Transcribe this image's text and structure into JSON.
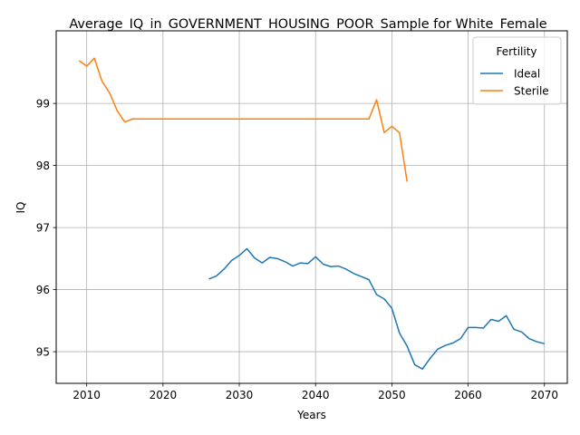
{
  "chart_data": {
    "type": "line",
    "title": "Average_IQ_in_GOVERNMENT_HOUSING_POOR_Sample for White_Female",
    "xlabel": "Years",
    "ylabel": "IQ",
    "xlim": [
      2006,
      2073
    ],
    "ylim": [
      94.49,
      100.17
    ],
    "xticks": [
      2010,
      2020,
      2030,
      2040,
      2050,
      2060,
      2070
    ],
    "yticks": [
      95,
      96,
      97,
      98,
      99
    ],
    "grid": true,
    "legend": {
      "title": "Fertility",
      "placement": "top-right"
    },
    "series": [
      {
        "name": "Ideal",
        "color": "#1f77b4",
        "x": [
          2026,
          2027,
          2028,
          2029,
          2030,
          2031,
          2032,
          2033,
          2034,
          2035,
          2036,
          2037,
          2038,
          2039,
          2040,
          2041,
          2042,
          2043,
          2044,
          2045,
          2046,
          2047,
          2048,
          2049,
          2050,
          2051,
          2052,
          2053,
          2054,
          2055,
          2056,
          2057,
          2058,
          2059,
          2060,
          2061,
          2062,
          2063,
          2064,
          2065,
          2066,
          2067,
          2068,
          2069,
          2070
        ],
        "y": [
          96.17,
          96.22,
          96.33,
          96.47,
          96.55,
          96.66,
          96.51,
          96.43,
          96.52,
          96.5,
          96.45,
          96.38,
          96.43,
          96.42,
          96.53,
          96.41,
          96.37,
          96.38,
          96.33,
          96.26,
          96.21,
          96.16,
          95.92,
          95.85,
          95.7,
          95.3,
          95.09,
          94.79,
          94.72,
          94.89,
          95.04,
          95.1,
          95.14,
          95.21,
          95.39,
          95.39,
          95.38,
          95.52,
          95.49,
          95.58,
          95.36,
          95.32,
          95.21,
          95.16,
          95.13
        ]
      },
      {
        "name": "Sterile",
        "color": "#ff7f0e",
        "x": [
          2009,
          2010,
          2011,
          2012,
          2013,
          2014,
          2015,
          2016,
          2017,
          2018,
          2019,
          2020,
          2021,
          2022,
          2023,
          2024,
          2025,
          2026,
          2027,
          2028,
          2029,
          2030,
          2031,
          2032,
          2033,
          2034,
          2035,
          2036,
          2037,
          2038,
          2039,
          2040,
          2041,
          2042,
          2043,
          2044,
          2045,
          2046,
          2047,
          2048,
          2049,
          2050,
          2051,
          2052
        ],
        "y": [
          99.69,
          99.6,
          99.73,
          99.36,
          99.17,
          98.88,
          98.7,
          98.75,
          98.75,
          98.75,
          98.75,
          98.75,
          98.75,
          98.75,
          98.75,
          98.75,
          98.75,
          98.75,
          98.75,
          98.75,
          98.75,
          98.75,
          98.75,
          98.75,
          98.75,
          98.75,
          98.75,
          98.75,
          98.75,
          98.75,
          98.75,
          98.75,
          98.75,
          98.75,
          98.75,
          98.75,
          98.75,
          98.75,
          98.75,
          99.06,
          98.53,
          98.63,
          98.53,
          97.74
        ]
      }
    ]
  }
}
